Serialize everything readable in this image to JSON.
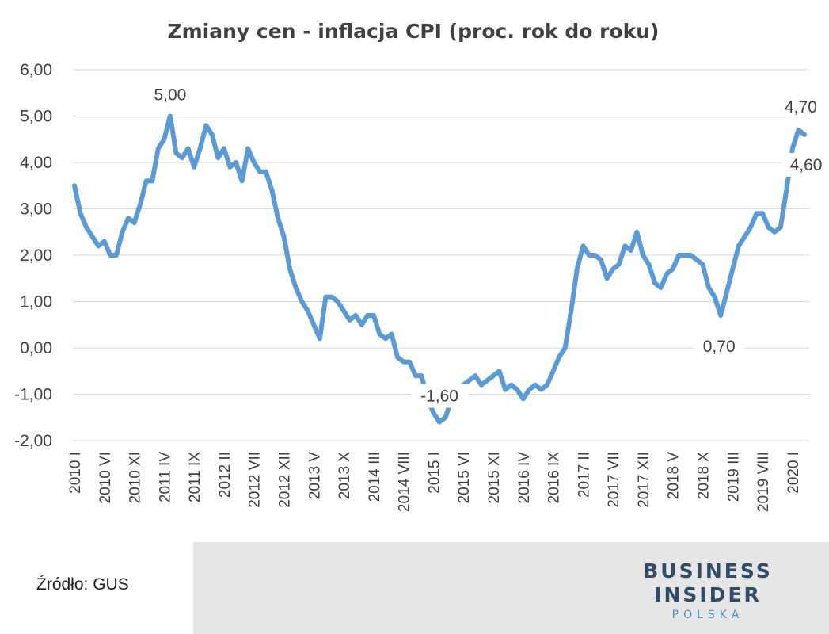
{
  "chart_data": {
    "type": "line",
    "title": "Zmiany cen - inflacja CPI (proc. rok do roku)",
    "xlabel": "",
    "ylabel": "",
    "ylim": [
      -2,
      6
    ],
    "yticks": [
      "6,00",
      "5,00",
      "4,00",
      "3,00",
      "2,00",
      "1,00",
      "0,00",
      "-1,00",
      "-2,00"
    ],
    "grid": true,
    "line_color": "#5b9bd5",
    "x_tick_labels": [
      "2010 I",
      "2010 VI",
      "2010 XI",
      "2011 IV",
      "2011 IX",
      "2012 II",
      "2012 VII",
      "2012 XII",
      "2013 V",
      "2013 X",
      "2014 III",
      "2014 VIII",
      "2015 I",
      "2015 VI",
      "2015 XI",
      "2016 IV",
      "2016 IX",
      "2017 II",
      "2017 VII",
      "2017 XII",
      "2018 V",
      "2018 X",
      "2019 III",
      "2019 VIII",
      "2020 I"
    ],
    "series": [
      {
        "values": [
          3.5,
          2.9,
          2.6,
          2.4,
          2.2,
          2.3,
          2.0,
          2.0,
          2.5,
          2.8,
          2.7,
          3.1,
          3.6,
          3.6,
          4.3,
          4.5,
          5.0,
          4.2,
          4.1,
          4.3,
          3.9,
          4.3,
          4.8,
          4.6,
          4.1,
          4.3,
          3.9,
          4.0,
          3.6,
          4.3,
          4.0,
          3.8,
          3.8,
          3.4,
          2.8,
          2.4,
          1.7,
          1.3,
          1.0,
          0.8,
          0.5,
          0.2,
          1.1,
          1.1,
          1.0,
          0.8,
          0.6,
          0.7,
          0.5,
          0.7,
          0.7,
          0.3,
          0.2,
          0.3,
          -0.2,
          -0.3,
          -0.3,
          -0.6,
          -0.6,
          -1.1,
          -1.4,
          -1.6,
          -1.5,
          -1.1,
          -0.9,
          -0.8,
          -0.7,
          -0.6,
          -0.8,
          -0.7,
          -0.6,
          -0.5,
          -0.9,
          -0.8,
          -0.9,
          -1.1,
          -0.9,
          -0.8,
          -0.9,
          -0.8,
          -0.5,
          -0.2,
          0.0,
          0.8,
          1.7,
          2.2,
          2.0,
          2.0,
          1.9,
          1.5,
          1.7,
          1.8,
          2.2,
          2.1,
          2.5,
          2.0,
          1.8,
          1.4,
          1.3,
          1.6,
          1.7,
          2.0,
          2.0,
          2.0,
          1.9,
          1.8,
          1.3,
          1.1,
          0.7,
          1.2,
          1.7,
          2.2,
          2.4,
          2.6,
          2.9,
          2.9,
          2.6,
          2.5,
          2.6,
          3.4,
          4.3,
          4.7,
          4.6
        ],
        "labels": [
          {
            "index": 16,
            "text": "5,00",
            "pos": "above"
          },
          {
            "index": 61,
            "text": "-1,60",
            "pos": "above-box"
          },
          {
            "index": 108,
            "text": "0,70",
            "pos": "below-box"
          },
          {
            "index": 121,
            "text": "4,70",
            "pos": "above"
          },
          {
            "index": 122,
            "text": "4,60",
            "pos": "below-box"
          }
        ]
      }
    ]
  },
  "footer": {
    "source": "Źródło: GUS",
    "brand_line1": "BUSINESS",
    "brand_line2": "INSIDER",
    "brand_line3": "POLSKA"
  }
}
